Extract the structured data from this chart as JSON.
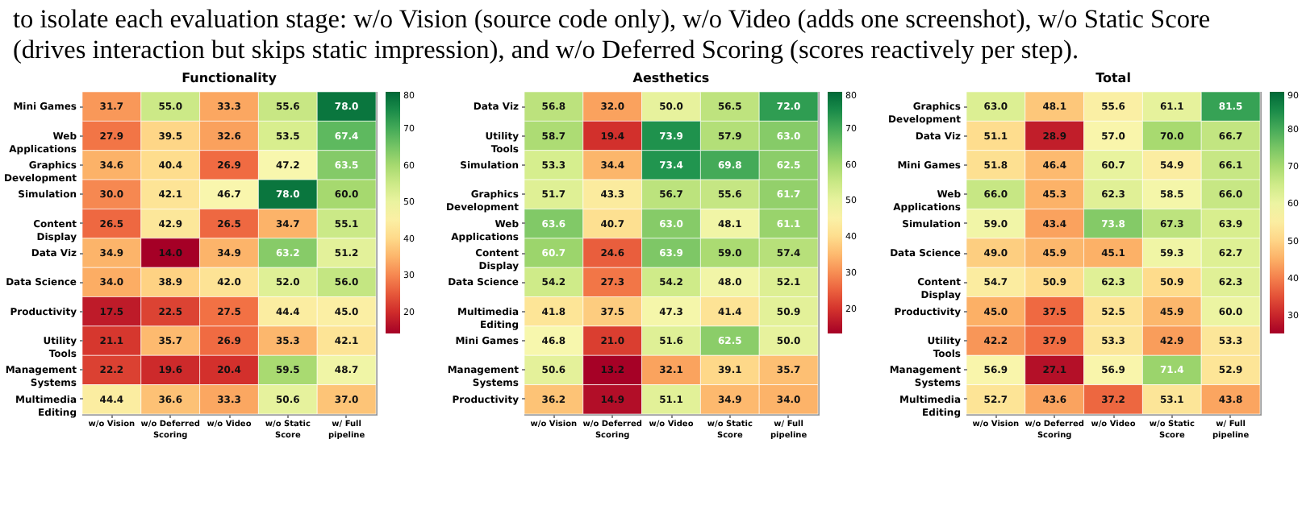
{
  "chart_data": [
    {
      "type": "heatmap",
      "title": "Functionality",
      "annotations": [
        "to isolate each evaluation stage: w/o Vision (source code only), w/o Video (adds one screenshot), w/o Static Score (drives interaction but skips static impression), and w/o Deferred Scoring (scores reactively per step)."
      ],
      "categories": [
        "w/o Vision",
        "w/o Deferred Scoring",
        "w/o Video",
        "w/o Static Score",
        "w/ Full pipeline"
      ],
      "y_categories": [
        "Mini Games",
        "Web Applications",
        "Graphics Development",
        "Simulation",
        "Content Display",
        "Data Viz",
        "Data Science",
        "Productivity",
        "Utility Tools",
        "Management Systems",
        "Multimedia Editing"
      ],
      "cells": [
        [
          31.7,
          55.0,
          33.3,
          55.6,
          78.0
        ],
        [
          27.9,
          39.5,
          32.6,
          53.5,
          67.4
        ],
        [
          34.6,
          40.4,
          26.9,
          47.2,
          63.5
        ],
        [
          30.0,
          42.1,
          46.7,
          78.0,
          60.0
        ],
        [
          26.5,
          42.9,
          26.5,
          34.7,
          55.1
        ],
        [
          34.9,
          14.0,
          34.9,
          63.2,
          51.2
        ],
        [
          34.0,
          38.9,
          42.0,
          52.0,
          56.0
        ],
        [
          17.5,
          22.5,
          27.5,
          44.4,
          45.0
        ],
        [
          21.1,
          35.7,
          26.9,
          35.3,
          42.1
        ],
        [
          22.2,
          19.6,
          20.4,
          59.5,
          48.7
        ],
        [
          44.4,
          36.6,
          33.3,
          50.6,
          37.0
        ]
      ],
      "cell_labels": [
        [
          "31.7",
          "55.0",
          "33.3",
          "55.6",
          "78.0"
        ],
        [
          "27.9",
          "39.5",
          "32.6",
          "53.5",
          "67.4"
        ],
        [
          "34.6",
          "40.4",
          "26.9",
          "47.2",
          "63.5"
        ],
        [
          "30.0",
          "42.1",
          "46.7",
          "78.0",
          "60.0"
        ],
        [
          "26.5",
          "42.9",
          "26.5",
          "34.7",
          "55.1"
        ],
        [
          "34.9",
          "14.0",
          "34.9",
          "63.2",
          "51.2"
        ],
        [
          "34.0",
          "38.9",
          "42.0",
          "52.0",
          "56.0"
        ],
        [
          "17.5",
          "22.5",
          "27.5",
          "44.4",
          "45.0"
        ],
        [
          "21.1",
          "35.7",
          "26.9",
          "35.3",
          "42.1"
        ],
        [
          "22.2",
          "19.6",
          "20.4",
          "59.5",
          "48.7"
        ],
        [
          "44.4",
          "36.6",
          "33.3",
          "50.6",
          "37.0"
        ]
      ],
      "data_labels": true,
      "clim": [
        14,
        80
      ],
      "cticks": [
        20,
        30,
        40,
        50,
        60,
        70,
        80
      ]
    },
    {
      "type": "heatmap",
      "title": "Aesthetics",
      "categories": [
        "w/o Vision",
        "w/o Deferred Scoring",
        "w/o Video",
        "w/o Static Score",
        "w/ Full pipeline"
      ],
      "y_categories": [
        "Data Viz",
        "Utility Tools",
        "Simulation",
        "Graphics Development",
        "Web Applications",
        "Content Display",
        "Data Science",
        "Multimedia Editing",
        "Mini Games",
        "Management Systems",
        "Productivity"
      ],
      "cells": [
        [
          56.8,
          32.0,
          50.0,
          56.5,
          72.0
        ],
        [
          58.7,
          19.4,
          73.9,
          57.9,
          63.0
        ],
        [
          53.3,
          34.4,
          73.4,
          69.8,
          62.5
        ],
        [
          51.7,
          43.3,
          56.7,
          55.6,
          61.7
        ],
        [
          63.6,
          40.7,
          63.0,
          48.1,
          61.1
        ],
        [
          60.7,
          24.6,
          63.9,
          59.0,
          57.4
        ],
        [
          54.2,
          27.3,
          54.2,
          48.0,
          52.1
        ],
        [
          41.8,
          37.5,
          47.3,
          41.4,
          50.9
        ],
        [
          46.8,
          21.0,
          51.6,
          62.5,
          50.0
        ],
        [
          50.6,
          13.2,
          32.1,
          39.1,
          35.7
        ],
        [
          36.2,
          14.9,
          51.1,
          34.9,
          34.0
        ]
      ],
      "cell_labels": [
        [
          "56.8",
          "32.0",
          "50.0",
          "56.5",
          "72.0"
        ],
        [
          "58.7",
          "19.4",
          "73.9",
          "57.9",
          "63.0"
        ],
        [
          "53.3",
          "34.4",
          "73.4",
          "69.8",
          "62.5"
        ],
        [
          "51.7",
          "43.3",
          "56.7",
          "55.6",
          "61.7"
        ],
        [
          "63.6",
          "40.7",
          "63.0",
          "48.1",
          "61.1"
        ],
        [
          "60.7",
          "24.6",
          "63.9",
          "59.0",
          "57.4"
        ],
        [
          "54.2",
          "27.3",
          "54.2",
          "48.0",
          "52.1"
        ],
        [
          "41.8",
          "37.5",
          "47.3",
          "41.4",
          "50.9"
        ],
        [
          "46.8",
          "21.0",
          "51.6",
          "62.5",
          "50.0"
        ],
        [
          "50.6",
          "13.2",
          "32.1",
          "39.1",
          "35.7"
        ],
        [
          "36.2",
          "14.9",
          "51.1",
          "34.9",
          "34.0"
        ]
      ],
      "data_labels": true,
      "clim": [
        13,
        80
      ],
      "cticks": [
        20,
        30,
        40,
        50,
        60,
        70,
        80
      ]
    },
    {
      "type": "heatmap",
      "title": "Total",
      "categories": [
        "w/o Vision",
        "w/o Deferred Scoring",
        "w/o Video",
        "w/o Static Score",
        "w/ Full pipeline"
      ],
      "y_categories": [
        "Graphics Development",
        "Data Viz",
        "Mini Games",
        "Web Applications",
        "Simulation",
        "Data Science",
        "Content Display",
        "Productivity",
        "Utility Tools",
        "Management Systems",
        "Multimedia Editing"
      ],
      "cells": [
        [
          63.0,
          48.1,
          55.6,
          61.1,
          81.5
        ],
        [
          51.1,
          28.9,
          57.0,
          70.0,
          66.7
        ],
        [
          51.8,
          46.4,
          60.7,
          54.9,
          66.1
        ],
        [
          66.0,
          45.3,
          62.3,
          58.5,
          66.0
        ],
        [
          59.0,
          43.4,
          73.8,
          67.3,
          63.9
        ],
        [
          49.0,
          45.9,
          45.1,
          59.3,
          62.7
        ],
        [
          54.7,
          50.9,
          62.3,
          50.9,
          62.3
        ],
        [
          45.0,
          37.5,
          52.5,
          45.9,
          60.0
        ],
        [
          42.2,
          37.9,
          53.3,
          42.9,
          53.3
        ],
        [
          56.9,
          27.1,
          56.9,
          71.4,
          52.9
        ],
        [
          52.7,
          43.6,
          37.2,
          53.1,
          43.8
        ]
      ],
      "cell_labels": [
        [
          "63.0",
          "48.1",
          "55.6",
          "61.1",
          "81.5"
        ],
        [
          "51.1",
          "28.9",
          "57.0",
          "70.0",
          "66.7"
        ],
        [
          "51.8",
          "46.4",
          "60.7",
          "54.9",
          "66.1"
        ],
        [
          "66.0",
          "45.3",
          "62.3",
          "58.5",
          "66.0"
        ],
        [
          "59.0",
          "43.4",
          "73.8",
          "67.3",
          "63.9"
        ],
        [
          "49.0",
          "45.9",
          "45.1",
          "59.3",
          "62.7"
        ],
        [
          "54.7",
          "50.9",
          "62.3",
          "50.9",
          "62.3"
        ],
        [
          "45.0",
          "37.5",
          "52.5",
          "45.9",
          "60.0"
        ],
        [
          "42.2",
          "37.9",
          "53.3",
          "42.9",
          "53.3"
        ],
        [
          "56.9",
          "27.1",
          "56.9",
          "71.4",
          "52.9"
        ],
        [
          "52.7",
          "43.6",
          "37.2",
          "53.1",
          "43.8"
        ]
      ],
      "data_labels": true,
      "clim": [
        25,
        90
      ],
      "cticks": [
        30,
        40,
        50,
        60,
        70,
        80,
        90
      ]
    }
  ]
}
